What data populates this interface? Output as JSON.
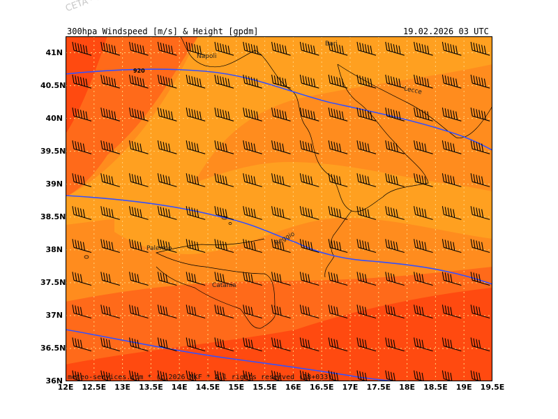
{
  "header": {
    "title": "300hpa Windspeed [m/s] & Height [gpdm]",
    "datetime": "19.02.2026 03 UTC"
  },
  "watermark": "CETA - m",
  "credit": "meteo-services.com * (c)2026 NKF * All rights reserved (18+033)",
  "axes": {
    "lat_labels": [
      "41N",
      "40.5N",
      "40N",
      "39.5N",
      "39N",
      "38.5N",
      "38N",
      "37.5N",
      "37N",
      "36.5N",
      "36N"
    ],
    "lon_labels": [
      "12E",
      "12.5E",
      "13E",
      "13.5E",
      "14E",
      "14.5E",
      "15E",
      "15.5E",
      "16E",
      "16.5E",
      "17E",
      "17.5E",
      "18E",
      "18.5E",
      "19E",
      "19.5E"
    ],
    "lat_range": [
      36,
      41.25
    ],
    "lon_range": [
      12,
      19.5
    ]
  },
  "cities": [
    {
      "name": "Napoli"
    },
    {
      "name": "Bari"
    },
    {
      "name": "Lecce"
    },
    {
      "name": "Reggio"
    },
    {
      "name": "Palermo"
    },
    {
      "name": "Catania"
    }
  ],
  "isolines": [
    {
      "label": "920"
    }
  ],
  "colors": {
    "dark_red": "#ff4a10",
    "orange_red": "#ff6a1a",
    "orange": "#ff8c1e",
    "light_orange": "#ffa020",
    "isoline": "#3350ff",
    "grid": "#ffd27a"
  }
}
